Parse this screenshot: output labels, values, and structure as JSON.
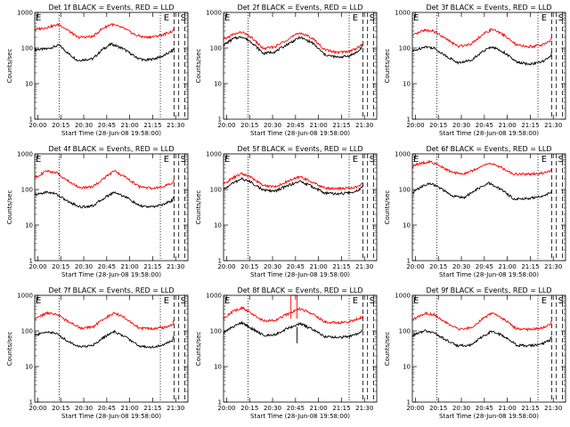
{
  "common": {
    "xlabel": "Start Time (28-Jun-08 19:58:00)",
    "ylabel": "Counts/sec",
    "x_tick_labels": [
      "20:00",
      "20:15",
      "20:30",
      "20:45",
      "21:00",
      "21:15",
      "21:30"
    ],
    "y_tick_labels": [
      "1",
      "10",
      "100",
      "1000"
    ],
    "markers": [
      "E",
      "E",
      "S"
    ],
    "colors": {
      "events": "#000000",
      "lld": "#ff0000"
    }
  },
  "chart_data": [
    {
      "type": "line",
      "title": "Det 1f BLACK = Events, RED = LLD",
      "x_range_min": [
        0,
        100
      ],
      "y_range": [
        1,
        1000
      ],
      "y_scale": "log",
      "vlines_dotted_min": [
        16,
        82
      ],
      "vlines_dashed_min": [
        91,
        94,
        98
      ],
      "series": [
        {
          "name": "Events",
          "x_min": [
            0,
            8,
            16,
            22,
            28,
            38,
            44,
            50,
            58,
            66,
            72,
            78,
            84,
            90,
            91
          ],
          "y": [
            90,
            95,
            120,
            70,
            45,
            50,
            90,
            130,
            95,
            55,
            45,
            50,
            60,
            85,
            100
          ]
        },
        {
          "name": "LLD",
          "x_min": [
            0,
            8,
            16,
            22,
            28,
            38,
            44,
            50,
            58,
            66,
            72,
            78,
            84,
            90,
            91
          ],
          "y": [
            330,
            380,
            460,
            310,
            200,
            210,
            350,
            470,
            360,
            230,
            200,
            210,
            240,
            300,
            330
          ]
        }
      ]
    },
    {
      "type": "line",
      "title": "Det 2f BLACK = Events, RED = LLD",
      "x_range_min": [
        0,
        100
      ],
      "y_range": [
        1,
        1000
      ],
      "y_scale": "log",
      "vlines_dotted_min": [
        16,
        82
      ],
      "vlines_dashed_min": [
        91,
        94,
        98
      ],
      "series": [
        {
          "name": "Events",
          "x_min": [
            0,
            6,
            12,
            18,
            26,
            34,
            42,
            50,
            58,
            66,
            74,
            82,
            88,
            91
          ],
          "y": [
            120,
            180,
            210,
            150,
            70,
            80,
            130,
            200,
            140,
            65,
            55,
            60,
            80,
            120
          ]
        },
        {
          "name": "LLD",
          "x_min": [
            0,
            6,
            12,
            18,
            26,
            34,
            42,
            50,
            58,
            66,
            74,
            82,
            88,
            91
          ],
          "y": [
            170,
            240,
            280,
            200,
            95,
            110,
            180,
            270,
            190,
            90,
            75,
            80,
            105,
            130
          ]
        }
      ]
    },
    {
      "type": "line",
      "title": "Det 3f BLACK = Events, RED = LLD",
      "x_range_min": [
        0,
        100
      ],
      "y_range": [
        1,
        1000
      ],
      "y_scale": "log",
      "vlines_dotted_min": [
        16,
        82
      ],
      "vlines_dashed_min": [
        91,
        94,
        98
      ],
      "series": [
        {
          "name": "Events",
          "x_min": [
            0,
            8,
            14,
            22,
            30,
            38,
            46,
            52,
            60,
            68,
            76,
            84,
            90,
            91
          ],
          "y": [
            80,
            110,
            100,
            60,
            38,
            45,
            80,
            110,
            75,
            40,
            35,
            40,
            55,
            80
          ]
        },
        {
          "name": "LLD",
          "x_min": [
            0,
            8,
            14,
            22,
            30,
            38,
            46,
            52,
            60,
            68,
            76,
            84,
            90,
            91
          ],
          "y": [
            220,
            320,
            300,
            180,
            110,
            130,
            240,
            340,
            230,
            120,
            110,
            120,
            160,
            210
          ]
        }
      ]
    },
    {
      "type": "line",
      "title": "Det 4f BLACK = Events, RED = LLD",
      "x_range_min": [
        0,
        100
      ],
      "y_range": [
        1,
        1000
      ],
      "y_scale": "log",
      "vlines_dotted_min": [
        16,
        82
      ],
      "vlines_dashed_min": [
        91,
        94,
        98
      ],
      "series": [
        {
          "name": "Events",
          "x_min": [
            0,
            8,
            14,
            22,
            30,
            38,
            46,
            52,
            60,
            68,
            76,
            84,
            90,
            91
          ],
          "y": [
            70,
            85,
            75,
            45,
            32,
            35,
            60,
            85,
            60,
            35,
            32,
            38,
            50,
            70
          ]
        },
        {
          "name": "LLD",
          "x_min": [
            0,
            8,
            14,
            22,
            30,
            38,
            46,
            52,
            60,
            68,
            76,
            84,
            90,
            91
          ],
          "y": [
            220,
            330,
            300,
            170,
            110,
            120,
            220,
            330,
            210,
            120,
            110,
            120,
            150,
            190
          ]
        }
      ]
    },
    {
      "type": "line",
      "title": "Det 5f BLACK = Events, RED = LLD",
      "x_range_min": [
        0,
        100
      ],
      "y_range": [
        1,
        1000
      ],
      "y_scale": "log",
      "vlines_dotted_min": [
        16,
        82
      ],
      "vlines_dashed_min": [
        91,
        94,
        98
      ],
      "series": [
        {
          "name": "Events",
          "x_min": [
            0,
            6,
            12,
            18,
            26,
            34,
            42,
            50,
            58,
            66,
            74,
            82,
            88,
            91
          ],
          "y": [
            100,
            150,
            200,
            160,
            95,
            90,
            130,
            170,
            120,
            80,
            75,
            80,
            95,
            130
          ]
        },
        {
          "name": "LLD",
          "x_min": [
            0,
            6,
            12,
            18,
            26,
            34,
            42,
            50,
            58,
            66,
            74,
            82,
            88,
            91
          ],
          "y": [
            140,
            210,
            280,
            220,
            130,
            120,
            170,
            230,
            160,
            110,
            105,
            110,
            120,
            150
          ]
        }
      ]
    },
    {
      "type": "line",
      "title": "Det 6f BLACK = Events, RED = LLD",
      "x_range_min": [
        0,
        100
      ],
      "y_range": [
        1,
        1000
      ],
      "y_scale": "log",
      "vlines_dotted_min": [
        16,
        82
      ],
      "vlines_dashed_min": [
        91,
        94,
        98
      ],
      "series": [
        {
          "name": "Events",
          "x_min": [
            0,
            6,
            12,
            18,
            26,
            34,
            42,
            50,
            58,
            66,
            74,
            82,
            88,
            91
          ],
          "y": [
            80,
            120,
            150,
            110,
            65,
            60,
            100,
            150,
            100,
            55,
            55,
            60,
            75,
            90
          ]
        },
        {
          "name": "LLD",
          "x_min": [
            0,
            6,
            12,
            18,
            26,
            34,
            42,
            50,
            58,
            66,
            74,
            82,
            88,
            91
          ],
          "y": [
            450,
            550,
            600,
            450,
            300,
            280,
            380,
            550,
            420,
            270,
            270,
            280,
            300,
            350
          ]
        }
      ]
    },
    {
      "type": "line",
      "title": "Det 7f BLACK = Events, RED = LLD",
      "x_range_min": [
        0,
        100
      ],
      "y_range": [
        1,
        1000
      ],
      "y_scale": "log",
      "vlines_dotted_min": [
        16,
        82
      ],
      "vlines_dashed_min": [
        91,
        94,
        98
      ],
      "series": [
        {
          "name": "Events",
          "x_min": [
            0,
            8,
            14,
            22,
            30,
            38,
            46,
            52,
            60,
            68,
            76,
            84,
            90,
            91
          ],
          "y": [
            75,
            95,
            85,
            50,
            35,
            40,
            70,
            95,
            65,
            38,
            35,
            40,
            55,
            75
          ]
        },
        {
          "name": "LLD",
          "x_min": [
            0,
            8,
            14,
            22,
            30,
            38,
            46,
            52,
            60,
            68,
            76,
            84,
            90,
            91
          ],
          "y": [
            220,
            320,
            300,
            180,
            120,
            130,
            230,
            330,
            220,
            120,
            115,
            125,
            150,
            200
          ]
        }
      ]
    },
    {
      "type": "line",
      "title": "Det 8f BLACK = Events, RED = LLD",
      "x_range_min": [
        0,
        100
      ],
      "y_range": [
        1,
        1000
      ],
      "y_scale": "log",
      "vlines_dotted_min": [
        16,
        82
      ],
      "vlines_dashed_min": [
        91,
        94,
        98
      ],
      "spikes": [
        {
          "x_min_from": 44,
          "x_min_to": 48,
          "y": 1000
        }
      ],
      "series": [
        {
          "name": "Events",
          "x_min": [
            0,
            6,
            12,
            18,
            26,
            34,
            42,
            50,
            58,
            66,
            74,
            82,
            88,
            91
          ],
          "y": [
            90,
            130,
            170,
            120,
            75,
            80,
            120,
            160,
            110,
            70,
            65,
            70,
            85,
            110
          ]
        },
        {
          "name": "LLD",
          "x_min": [
            0,
            6,
            12,
            18,
            26,
            34,
            42,
            50,
            58,
            66,
            74,
            82,
            88,
            91
          ],
          "y": [
            230,
            350,
            450,
            320,
            190,
            200,
            300,
            420,
            300,
            180,
            170,
            180,
            220,
            250
          ]
        }
      ]
    },
    {
      "type": "line",
      "title": "Det 9f BLACK = Events, RED = LLD",
      "x_range_min": [
        0,
        100
      ],
      "y_range": [
        1,
        1000
      ],
      "y_scale": "log",
      "vlines_dotted_min": [
        16,
        82
      ],
      "vlines_dashed_min": [
        91,
        94,
        98
      ],
      "series": [
        {
          "name": "Events",
          "x_min": [
            0,
            8,
            14,
            22,
            30,
            38,
            46,
            52,
            60,
            68,
            76,
            84,
            90,
            91
          ],
          "y": [
            75,
            100,
            90,
            55,
            38,
            40,
            70,
            100,
            70,
            40,
            38,
            42,
            55,
            75
          ]
        },
        {
          "name": "LLD",
          "x_min": [
            0,
            8,
            14,
            22,
            30,
            38,
            46,
            52,
            60,
            68,
            76,
            84,
            90,
            91
          ],
          "y": [
            210,
            310,
            290,
            170,
            110,
            120,
            220,
            320,
            210,
            115,
            110,
            120,
            150,
            200
          ]
        }
      ]
    }
  ]
}
